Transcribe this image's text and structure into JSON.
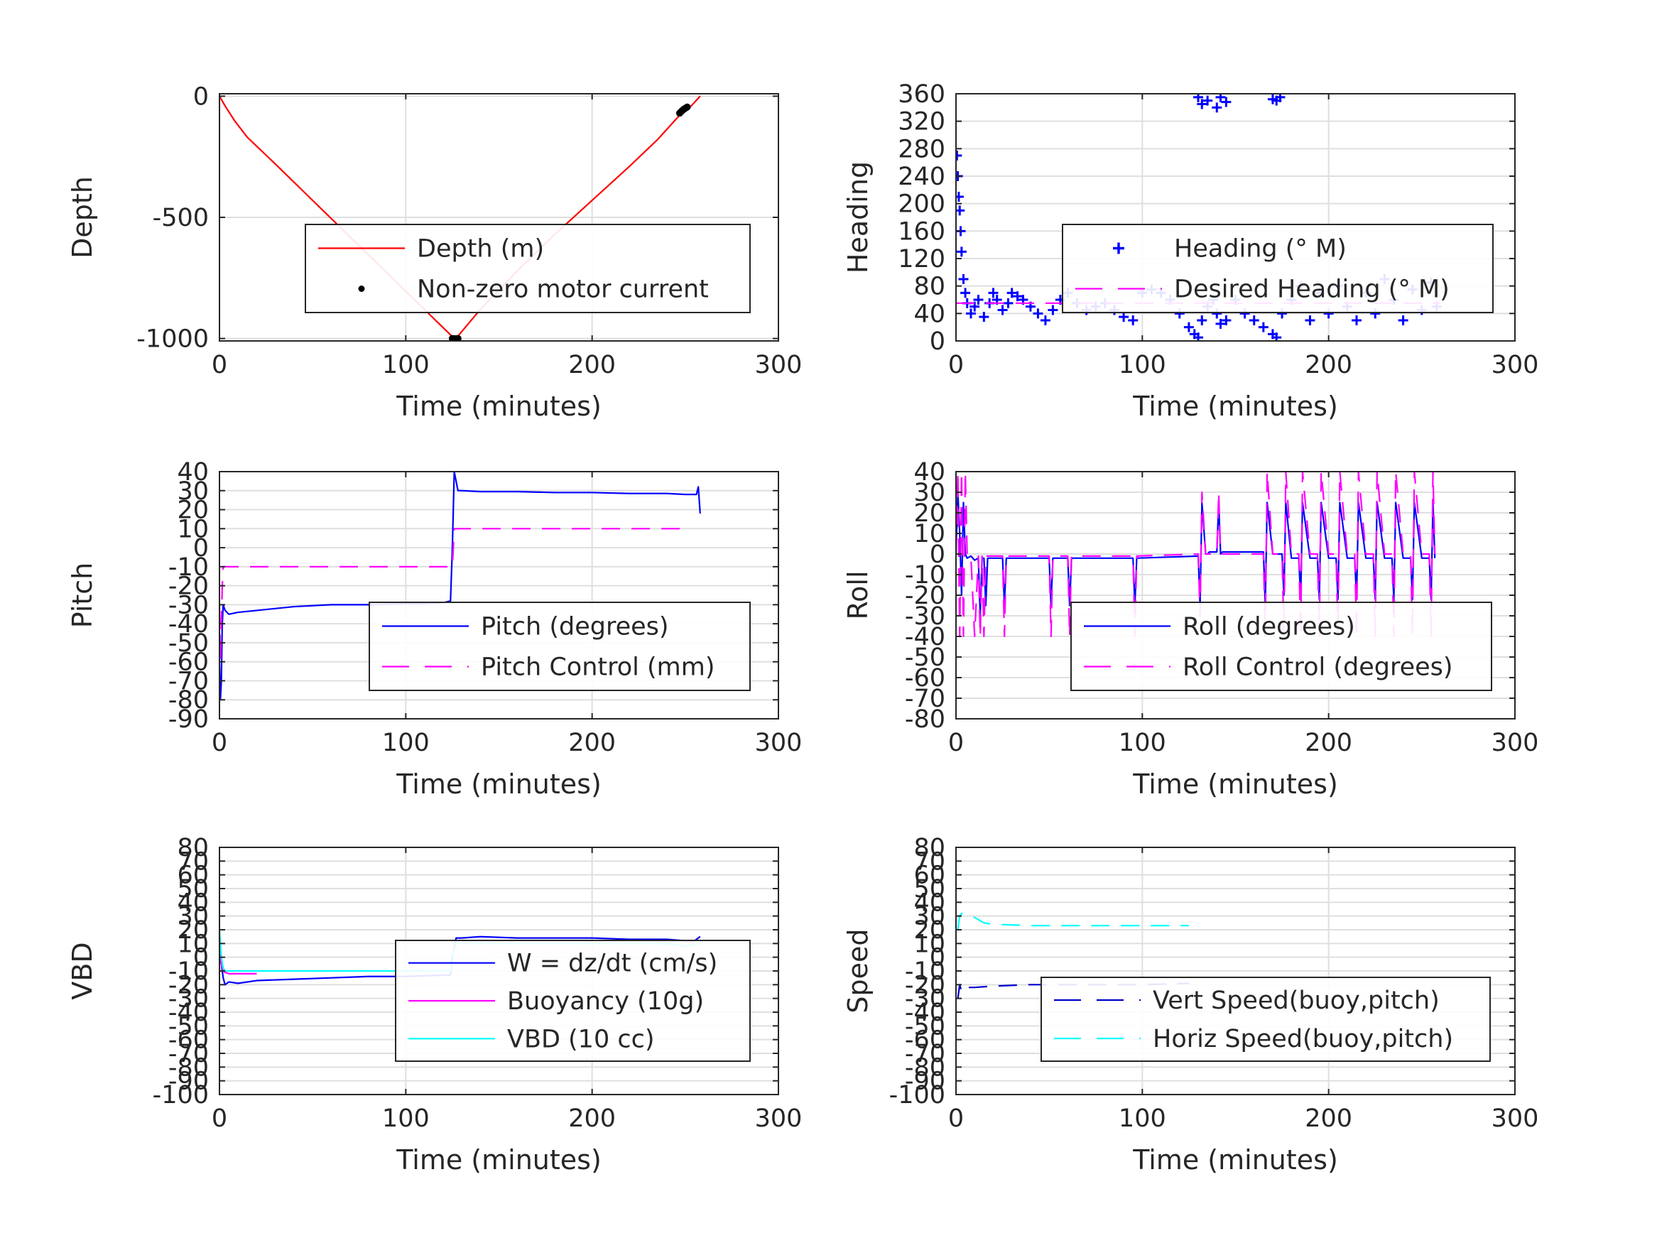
{
  "chart_data": [
    {
      "type": "line",
      "xlabel": "Time (minutes)",
      "ylabel": "Depth",
      "xlim": [
        0,
        300
      ],
      "ylim": [
        -1010,
        10
      ],
      "xticks": [
        0,
        100,
        200,
        300
      ],
      "yticks": [
        0,
        -500,
        -1000
      ],
      "grid": true,
      "legend_position": "inside, center-right",
      "series": [
        {
          "name": "Depth (m)",
          "style": "solid",
          "color": "#ff0000",
          "marker": "",
          "x": [
            0,
            3,
            8,
            15,
            30,
            50,
            70,
            90,
            110,
            124,
            126,
            128,
            140,
            160,
            180,
            200,
            220,
            235,
            248,
            252,
            258
          ],
          "y": [
            0,
            -40,
            -100,
            -170,
            -280,
            -430,
            -580,
            -730,
            -880,
            -985,
            -1000,
            -990,
            -880,
            -720,
            -570,
            -430,
            -290,
            -180,
            -70,
            -50,
            0
          ]
        },
        {
          "name": "Non-zero motor current",
          "style": "none",
          "color": "#000000",
          "marker": ".",
          "x": [
            125,
            126,
            127,
            128,
            247,
            248,
            249,
            250,
            251
          ],
          "y": [
            -1000,
            -1001,
            -1001,
            -1000,
            -70,
            -62,
            -55,
            -50,
            -45
          ]
        }
      ]
    },
    {
      "type": "scatter",
      "xlabel": "Time (minutes)",
      "ylabel": "Heading",
      "xlim": [
        0,
        300
      ],
      "ylim": [
        0,
        360
      ],
      "xticks": [
        0,
        100,
        200,
        300
      ],
      "yticks": [
        0,
        40,
        80,
        120,
        160,
        200,
        240,
        280,
        320,
        360
      ],
      "grid": true,
      "legend_position": "inside, center-right",
      "series": [
        {
          "name": "Heading (° M)",
          "style": "none",
          "color": "#0000ff",
          "marker": "+",
          "x": [
            0.5,
            1,
            1.5,
            2,
            2.5,
            3,
            4,
            5,
            6,
            8,
            10,
            12,
            15,
            18,
            20,
            22,
            25,
            28,
            30,
            33,
            36,
            40,
            44,
            48,
            52,
            56,
            60,
            65,
            70,
            75,
            80,
            85,
            90,
            95,
            100,
            105,
            110,
            115,
            120,
            125,
            128,
            130,
            132,
            135,
            138,
            140,
            142,
            145,
            150,
            155,
            160,
            165,
            170,
            172,
            175,
            180,
            185,
            190,
            195,
            200,
            205,
            210,
            215,
            220,
            225,
            230,
            235,
            240,
            245,
            250,
            255,
            258,
            130,
            132,
            135,
            140,
            142,
            145,
            170,
            172,
            174
          ],
          "y": [
            270,
            240,
            210,
            190,
            160,
            130,
            90,
            70,
            55,
            40,
            50,
            60,
            35,
            55,
            70,
            60,
            45,
            55,
            70,
            65,
            60,
            50,
            40,
            30,
            45,
            60,
            70,
            55,
            45,
            50,
            55,
            45,
            35,
            30,
            70,
            75,
            70,
            60,
            40,
            20,
            10,
            5,
            30,
            50,
            60,
            40,
            25,
            30,
            60,
            40,
            30,
            20,
            10,
            5,
            40,
            60,
            80,
            30,
            70,
            40,
            80,
            50,
            30,
            70,
            40,
            90,
            60,
            30,
            75,
            45,
            85,
            50,
            355,
            345,
            350,
            340,
            355,
            348,
            352,
            350,
            355
          ]
        },
        {
          "name": "Desired Heading (° M)",
          "style": "dashed",
          "color": "#ff00ff",
          "marker": "",
          "x": [
            0,
            260
          ],
          "y": [
            55,
            55
          ]
        }
      ]
    },
    {
      "type": "line",
      "xlabel": "Time (minutes)",
      "ylabel": "Pitch",
      "xlim": [
        0,
        300
      ],
      "ylim": [
        -90,
        40
      ],
      "xticks": [
        0,
        100,
        200,
        300
      ],
      "yticks": [
        40,
        30,
        20,
        10,
        0,
        -10,
        -20,
        -30,
        -40,
        -50,
        -60,
        -70,
        -80,
        -90
      ],
      "grid": true,
      "legend_position": "inside, center-right",
      "series": [
        {
          "name": "Pitch (degrees)",
          "style": "solid",
          "color": "#0000ff",
          "marker": "",
          "x": [
            0,
            0.5,
            1,
            1.5,
            2,
            3,
            5,
            10,
            20,
            40,
            60,
            80,
            100,
            110,
            120,
            124,
            125,
            126,
            127,
            128,
            130,
            140,
            160,
            180,
            200,
            220,
            240,
            250,
            256,
            257,
            258
          ],
          "y": [
            -60,
            -80,
            -70,
            -40,
            -30,
            -33,
            -35,
            -34,
            -33,
            -31,
            -30,
            -30,
            -29.5,
            -29.5,
            -29,
            -28,
            0,
            40,
            35,
            30,
            30,
            29.5,
            29.5,
            29,
            29,
            28.5,
            28.5,
            28,
            28,
            32,
            18
          ]
        },
        {
          "name": "Pitch Control (mm)",
          "style": "dashed",
          "color": "#ff00ff",
          "marker": "",
          "x": [
            0,
            0.5,
            1,
            1.5,
            2,
            3,
            124,
            125,
            126,
            127,
            130,
            250
          ],
          "y": [
            -30,
            -60,
            -40,
            -20,
            -10,
            -10,
            -10,
            -10,
            10,
            10,
            10,
            10
          ]
        }
      ]
    },
    {
      "type": "line",
      "xlabel": "Time (minutes)",
      "ylabel": "Roll",
      "xlim": [
        0,
        300
      ],
      "ylim": [
        -80,
        40
      ],
      "xticks": [
        0,
        100,
        200,
        300
      ],
      "yticks": [
        40,
        30,
        20,
        10,
        0,
        -10,
        -20,
        -30,
        -40,
        -50,
        -60,
        -70,
        -80
      ],
      "grid": true,
      "legend_position": "inside, center-right",
      "series": [
        {
          "name": "Roll (degrees)",
          "style": "solid",
          "color": "#0000ff",
          "marker": "",
          "x": [
            0,
            1,
            2,
            3,
            4,
            5,
            6,
            8,
            10,
            12,
            13,
            14,
            15,
            16,
            17,
            20,
            25,
            26,
            27,
            30,
            50,
            51,
            52,
            53,
            60,
            61,
            62,
            95,
            96,
            97,
            130,
            131,
            132,
            134,
            135,
            136,
            140,
            141,
            142,
            143,
            150,
            165,
            166,
            167,
            170,
            175,
            176,
            177,
            180,
            184,
            185,
            186,
            190,
            194,
            195,
            196,
            200,
            204,
            205,
            206,
            210,
            214,
            215,
            216,
            220,
            224,
            225,
            226,
            230,
            234,
            235,
            236,
            240,
            244,
            245,
            246,
            250,
            254,
            255,
            256,
            257
          ],
          "y": [
            0,
            30,
            10,
            -20,
            25,
            0,
            -2,
            -1,
            -3,
            -2,
            -30,
            -2,
            -2,
            -25,
            -2,
            -2,
            -2,
            -25,
            -2,
            -2,
            -2,
            -25,
            -2,
            -2,
            -2,
            -25,
            -2,
            -2,
            -25,
            -2,
            -1,
            -25,
            25,
            0,
            0,
            1,
            1,
            25,
            0,
            1,
            1,
            1,
            -25,
            25,
            0,
            0,
            -20,
            25,
            -2,
            -2,
            -22,
            25,
            -2,
            -2,
            -22,
            25,
            -2,
            -2,
            -22,
            25,
            -2,
            -2,
            -22,
            25,
            -2,
            -2,
            -22,
            25,
            -2,
            -2,
            -22,
            25,
            -2,
            -2,
            -22,
            25,
            -2,
            -2,
            -22,
            25,
            -2
          ]
        },
        {
          "name": "Roll Control (degrees)",
          "style": "dashed",
          "color": "#ff00ff",
          "marker": "",
          "x": [
            0,
            1,
            2,
            3,
            4,
            5,
            6,
            8,
            10,
            12,
            13,
            14,
            15,
            16,
            17,
            20,
            25,
            26,
            27,
            30,
            50,
            51,
            52,
            53,
            60,
            61,
            62,
            95,
            96,
            97,
            130,
            131,
            132,
            134,
            140,
            141,
            142,
            143,
            165,
            166,
            167,
            170,
            175,
            176,
            177,
            180,
            184,
            185,
            186,
            190,
            194,
            195,
            196,
            200,
            204,
            205,
            206,
            210,
            214,
            215,
            216,
            220,
            224,
            225,
            226,
            230,
            234,
            235,
            236,
            240,
            244,
            245,
            246,
            250,
            254,
            255,
            256,
            257
          ],
          "y": [
            0,
            40,
            -40,
            40,
            -40,
            40,
            -1,
            -1,
            -40,
            -1,
            -40,
            -1,
            -40,
            -1,
            -1,
            -1,
            -1,
            -40,
            -1,
            -1,
            -1,
            -40,
            -1,
            -1,
            -1,
            -40,
            -1,
            -1,
            -40,
            -1,
            0,
            -30,
            30,
            0,
            0,
            30,
            0,
            0,
            0,
            -40,
            40,
            0,
            0,
            -40,
            40,
            0,
            0,
            -40,
            40,
            0,
            0,
            -40,
            40,
            0,
            0,
            -40,
            40,
            0,
            0,
            -40,
            40,
            0,
            0,
            -40,
            40,
            0,
            0,
            -40,
            40,
            0,
            0,
            -40,
            40,
            0,
            0,
            -40,
            40,
            0
          ]
        }
      ]
    },
    {
      "type": "line",
      "xlabel": "Time (minutes)",
      "ylabel": "VBD",
      "xlim": [
        0,
        300
      ],
      "ylim": [
        -100,
        80
      ],
      "xticks": [
        0,
        100,
        200,
        300
      ],
      "yticks": [
        80,
        70,
        60,
        50,
        40,
        30,
        20,
        10,
        0,
        -10,
        -20,
        -30,
        -40,
        -50,
        -60,
        -70,
        -80,
        -90,
        -100
      ],
      "grid": true,
      "legend_position": "inside, center-right",
      "series": [
        {
          "name": "W = dz/dt (cm/s)",
          "style": "solid",
          "color": "#0000ff",
          "marker": "",
          "x": [
            0,
            1,
            2,
            3,
            5,
            10,
            20,
            40,
            60,
            80,
            100,
            120,
            124,
            125,
            127,
            130,
            140,
            160,
            180,
            200,
            220,
            240,
            250,
            255,
            258
          ],
          "y": [
            0,
            -5,
            -15,
            -20,
            -18,
            -19,
            -17,
            -16,
            -15,
            -14,
            -14,
            -13,
            -13,
            0,
            14,
            14,
            15,
            14,
            14,
            14,
            13,
            13,
            12,
            12,
            15
          ]
        },
        {
          "name": "Buoyancy (10g)",
          "style": "solid",
          "color": "#ff00ff",
          "marker": "",
          "x": [
            0,
            1,
            2,
            3,
            5,
            10,
            20
          ],
          "y": [
            5,
            -5,
            -10,
            -11,
            -12,
            -12,
            -12
          ]
        },
        {
          "name": "VBD (10 cc)",
          "style": "solid",
          "color": "#00ffff",
          "marker": "",
          "x": [
            0,
            0.5,
            1,
            2,
            3,
            5,
            20,
            60,
            100,
            124,
            125,
            126,
            130,
            200,
            240,
            250,
            258
          ],
          "y": [
            20,
            10,
            0,
            -8,
            -10,
            -10,
            -10,
            -10,
            -10,
            -10,
            -5,
            10,
            10,
            10,
            10,
            8,
            10
          ]
        }
      ]
    },
    {
      "type": "line",
      "xlabel": "Time (minutes)",
      "ylabel": "Speed",
      "xlim": [
        0,
        300
      ],
      "ylim": [
        -100,
        80
      ],
      "xticks": [
        0,
        100,
        200,
        300
      ],
      "yticks": [
        80,
        70,
        60,
        50,
        40,
        30,
        20,
        10,
        0,
        -10,
        -20,
        -30,
        -40,
        -50,
        -60,
        -70,
        -80,
        -90,
        -100
      ],
      "grid": true,
      "legend_position": "inside, center-right",
      "series": [
        {
          "name": "Vert Speed(buoy,pitch)",
          "style": "dashed",
          "color": "#0000cc",
          "marker": "",
          "x": [
            1,
            2,
            3,
            4,
            6,
            10,
            20,
            40,
            60,
            80,
            100,
            125
          ],
          "y": [
            -30,
            -20,
            -25,
            -23,
            -22,
            -22,
            -21,
            -20,
            -20,
            -20,
            -20,
            -19
          ]
        },
        {
          "name": "Horiz Speed(buoy,pitch)",
          "style": "dashed",
          "color": "#00ffff",
          "marker": "",
          "x": [
            1,
            2,
            3,
            4,
            6,
            10,
            15,
            20,
            40,
            60,
            80,
            100,
            125
          ],
          "y": [
            20,
            30,
            32,
            31,
            30,
            29,
            25,
            24,
            23,
            23,
            23,
            23,
            23
          ]
        }
      ]
    }
  ]
}
